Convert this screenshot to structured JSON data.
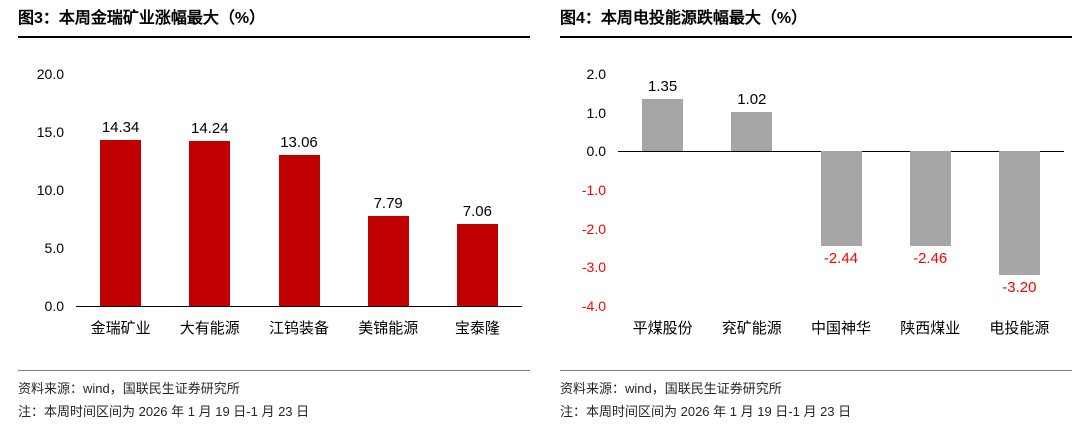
{
  "panels": [
    {
      "source": "资料来源：wind，国联民生证券研究所",
      "note": "注：本周时间区间为 2026 年 1 月 19 日-1 月 23 日"
    },
    {
      "source": "资料来源：wind，国联民生证券研究所",
      "note": "注：本周时间区间为 2026 年 1 月 19 日-1 月 23 日"
    }
  ],
  "chart_data": [
    {
      "type": "bar",
      "title": "图3：本周金瑞矿业涨幅最大（%）",
      "categories": [
        "金瑞矿业",
        "大有能源",
        "江钨装备",
        "美锦能源",
        "宝泰隆"
      ],
      "values": [
        14.34,
        14.24,
        13.06,
        7.79,
        7.06
      ],
      "xlabel": "",
      "ylabel": "",
      "ylim": [
        0,
        20
      ],
      "ytick_step": 5,
      "grid": false,
      "legend": "none",
      "bar_color": "#c00000",
      "positive_label_color": "#000000",
      "negative_label_color": "#ff0000",
      "value_decimals": 2
    },
    {
      "type": "bar",
      "title": "图4：本周电投能源跌幅最大（%）",
      "categories": [
        "平煤股份",
        "兖矿能源",
        "中国神华",
        "陕西煤业",
        "电投能源"
      ],
      "values": [
        1.35,
        1.02,
        -2.44,
        -2.46,
        -3.2
      ],
      "xlabel": "",
      "ylabel": "",
      "ylim": [
        -4,
        2
      ],
      "ytick_step": 1,
      "grid": false,
      "legend": "none",
      "bar_color": "#a6a6a6",
      "positive_label_color": "#000000",
      "negative_label_color": "#ff0000",
      "value_decimals": 2
    }
  ]
}
